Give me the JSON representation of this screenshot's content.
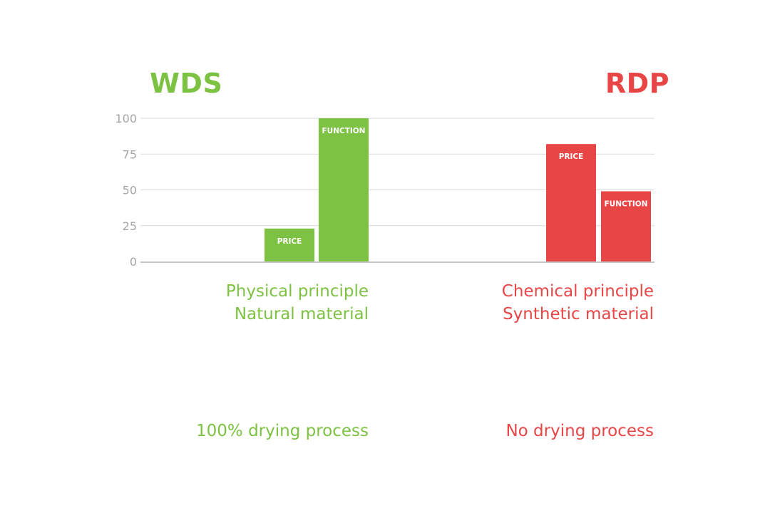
{
  "colors": {
    "wds": "#7dc242",
    "rdp": "#e84546",
    "grid": "#d9d9d9",
    "axis": "#b3b3b3",
    "tick_text": "#a6a6a6",
    "bar_label": "#ffffff"
  },
  "chart_data": {
    "type": "bar",
    "ylim": [
      0,
      100
    ],
    "yticks": [
      "0",
      "25",
      "50",
      "75",
      "100"
    ],
    "grid": true,
    "groups": [
      {
        "title": "WDS",
        "color": "#7dc242",
        "bars": [
          {
            "label": "PRICE",
            "value": 23
          },
          {
            "label": "FUNCTION",
            "value": 100
          }
        ],
        "lines": [
          "Physical principle",
          "Natural material"
        ],
        "note": "100% drying process"
      },
      {
        "title": "RDP",
        "color": "#e84546",
        "bars": [
          {
            "label": "PRICE",
            "value": 82
          },
          {
            "label": "FUNCTION",
            "value": 49
          }
        ],
        "lines": [
          "Chemical principle",
          "Synthetic material"
        ],
        "note": "No drying process"
      }
    ]
  }
}
